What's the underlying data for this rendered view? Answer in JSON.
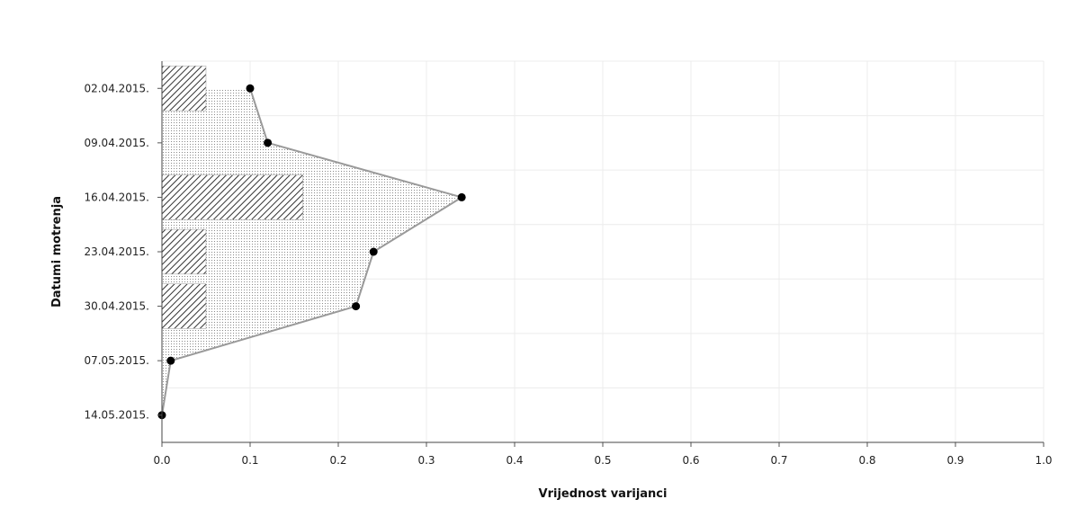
{
  "chart_data": {
    "type": "bar",
    "orientation": "horizontal",
    "categories": [
      "02.04.2015.",
      "09.04.2015.",
      "16.04.2015.",
      "23.04.2015.",
      "30.04.2015.",
      "07.05.2015.",
      "14.05.2015."
    ],
    "series": [
      {
        "type": "bar",
        "values": [
          0.05,
          0,
          0.16,
          0.05,
          0.05,
          0,
          0
        ]
      },
      {
        "type": "area-line",
        "values": [
          0.1,
          0.12,
          0.34,
          0.24,
          0.22,
          0.01,
          0.0
        ]
      }
    ],
    "xlabel": "Vrijednost varijanci",
    "ylabel": "Datumi motrenja",
    "xlim": [
      0,
      1
    ],
    "xticks": [
      "0.0",
      "0.1",
      "0.2",
      "0.3",
      "0.4",
      "0.5",
      "0.6",
      "0.7",
      "0.8",
      "0.9",
      "1.0"
    ],
    "grid": true
  }
}
